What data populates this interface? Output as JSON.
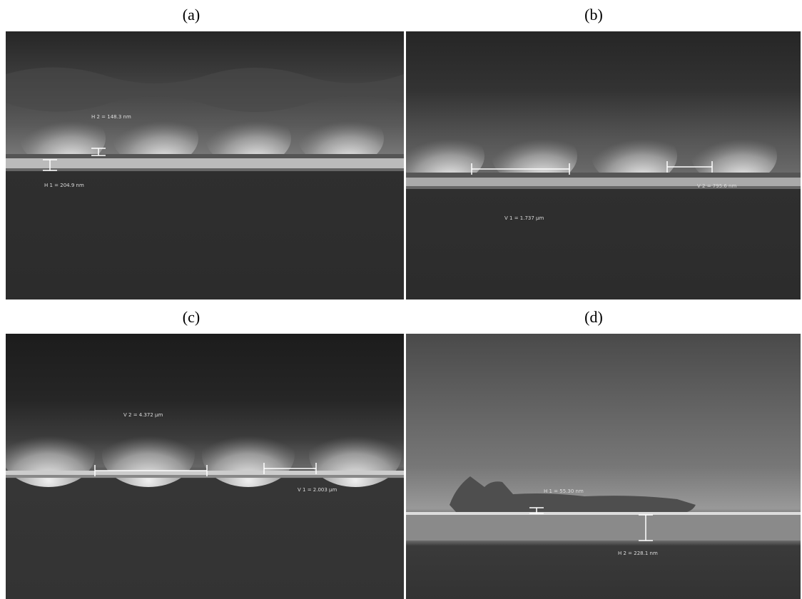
{
  "panels": [
    {
      "label": "(a)",
      "annotations": [
        "H 2 = 148.3 nm",
        "H 1 = 204.9 nm"
      ]
    },
    {
      "label": "(b)",
      "annotations": [
        "V 2 = 795.6 nm",
        "V 1 = 1.737 µm"
      ]
    },
    {
      "label": "(c)",
      "annotations": [
        "V 2 = 4.372 µm",
        "V 1 = 2.003 µm"
      ]
    },
    {
      "label": "(d)",
      "annotations": [
        "H 1 = 55.30 nm",
        "H 2 = 228.1 nm"
      ]
    }
  ]
}
